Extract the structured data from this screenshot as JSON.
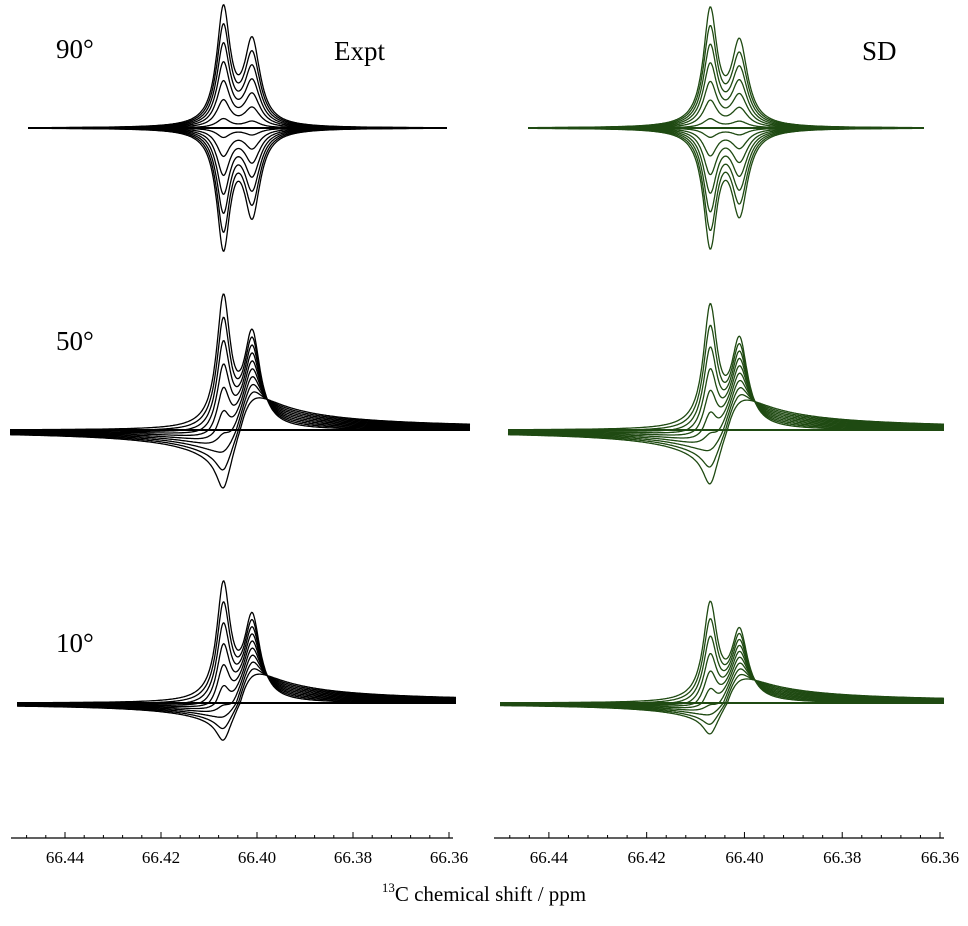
{
  "chart_data": {
    "type": "line",
    "xlabel": {
      "sup": "13",
      "text": "C chemical shift / ppm"
    },
    "xlim": [
      66.45,
      66.36
    ],
    "x_ticks": [
      "66.44",
      "66.42",
      "66.40",
      "66.38",
      "66.36"
    ],
    "columns": [
      {
        "title": "Expt",
        "color": "#000000"
      },
      {
        "title": "SD",
        "color": "#1f4a12"
      }
    ],
    "rows": [
      {
        "angle_label": "90°",
        "n_traces": 14,
        "min_scale": -1.02,
        "max_scale": 1.0
      },
      {
        "angle_label": "50°",
        "n_traces": 10,
        "min_scale": -0.35,
        "max_scale": 1.0
      },
      {
        "angle_label": "10°",
        "n_traces": 10,
        "min_scale": -0.25,
        "max_scale": 1.0
      }
    ],
    "peaks_ppm": [
      66.407,
      66.401
    ],
    "grid": false,
    "legend": "none"
  }
}
